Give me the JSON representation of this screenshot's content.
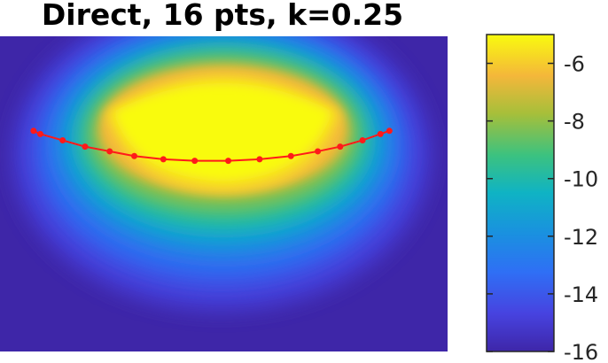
{
  "chart_data": {
    "type": "heatmap",
    "title": "Direct, 16 pts, k=0.25",
    "xlabel": "",
    "ylabel": "",
    "colormap": "parula",
    "clim": [
      -16,
      -5
    ],
    "colorbar": {
      "ticks": [
        -6,
        -8,
        -10,
        -12,
        -14,
        -16
      ],
      "tick_labels": [
        "-6",
        "-8",
        "-10",
        "-12",
        "-14",
        "-16"
      ]
    },
    "curve": {
      "color": "#ff1a1a",
      "marker": "dot",
      "points": [
        [
          -0.85,
          0.4
        ],
        [
          -0.82,
          0.38
        ],
        [
          -0.72,
          0.34
        ],
        [
          -0.62,
          0.3
        ],
        [
          -0.51,
          0.27
        ],
        [
          -0.4,
          0.24
        ],
        [
          -0.27,
          0.22
        ],
        [
          -0.13,
          0.21
        ],
        [
          0.02,
          0.21
        ],
        [
          0.16,
          0.22
        ],
        [
          0.3,
          0.24
        ],
        [
          0.42,
          0.27
        ],
        [
          0.52,
          0.3
        ],
        [
          0.62,
          0.34
        ],
        [
          0.7,
          0.38
        ],
        [
          0.74,
          0.4
        ]
      ]
    }
  }
}
